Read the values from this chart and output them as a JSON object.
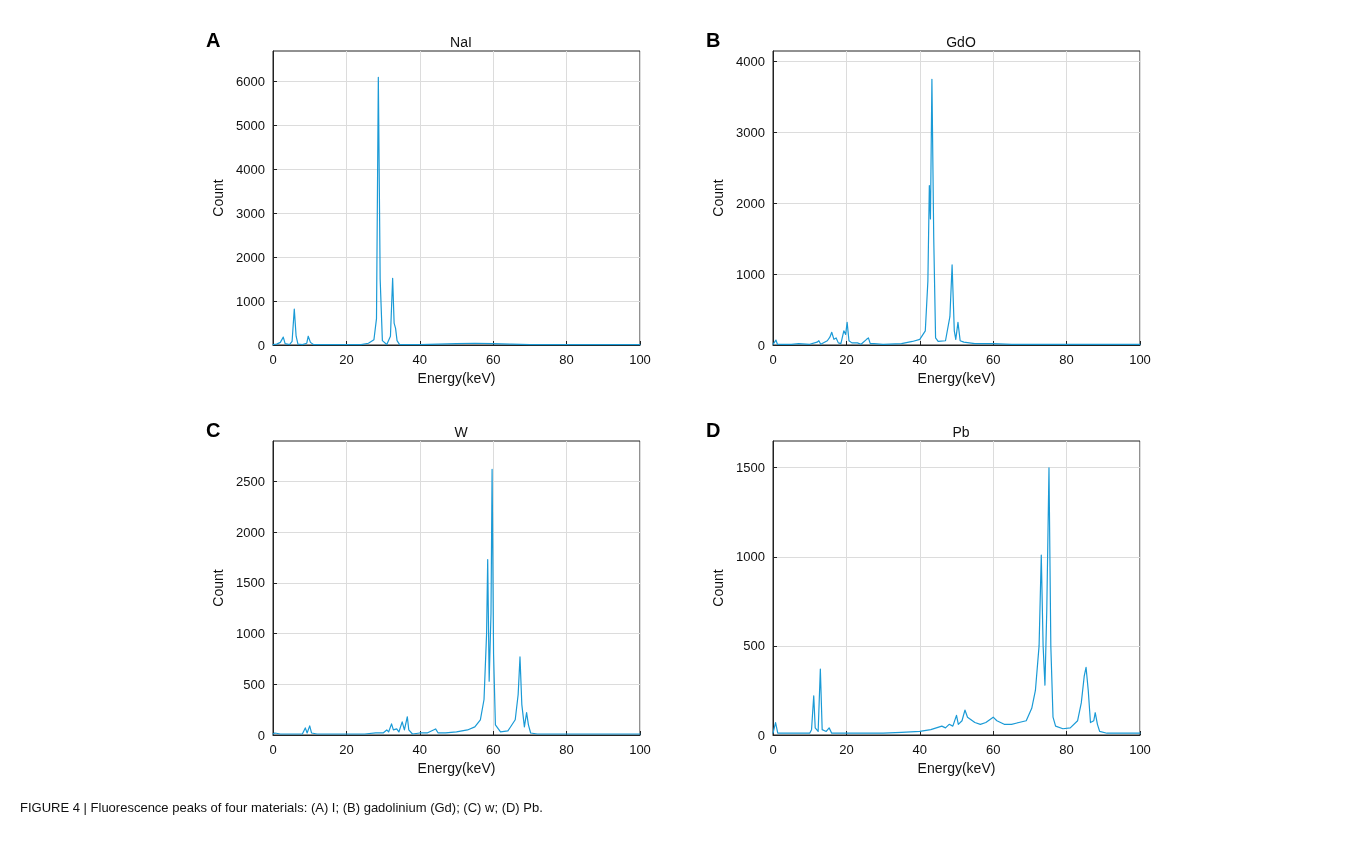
{
  "chart_data": [
    {
      "type": "line",
      "title": "NaI",
      "xlabel": "Energy(keV)",
      "ylabel": "Count",
      "annotations": [
        "A"
      ],
      "xlim": [
        0,
        100
      ],
      "xticks": [
        0,
        20,
        40,
        60,
        80,
        100
      ],
      "ylim": [
        0,
        6700
      ],
      "yticks": [
        0,
        1000,
        2000,
        3000,
        4000,
        5000,
        6000
      ],
      "grid": true,
      "marker": "none",
      "line_style": "solid",
      "x": [
        0,
        1,
        2,
        2.8,
        3.3,
        4.5,
        5.2,
        5.8,
        6.3,
        6.8,
        8,
        9.2,
        9.6,
        10.2,
        11,
        15,
        20,
        24,
        26,
        27.5,
        28.2,
        28.7,
        29.2,
        29.8,
        31,
        32,
        32.6,
        33,
        33.4,
        33.8,
        34.5,
        40,
        45,
        50,
        55,
        60,
        65,
        70,
        80,
        90,
        100
      ],
      "series": [
        {
          "color": "#1a9ad6",
          "values": [
            10,
            20,
            60,
            180,
            30,
            10,
            80,
            820,
            200,
            20,
            10,
            40,
            200,
            60,
            10,
            10,
            10,
            10,
            40,
            120,
            600,
            6100,
            1500,
            100,
            10,
            200,
            1520,
            500,
            380,
            100,
            10,
            10,
            20,
            30,
            40,
            30,
            20,
            10,
            10,
            10,
            10
          ]
        }
      ]
    },
    {
      "type": "line",
      "title": "GdO",
      "xlabel": "Energy(keV)",
      "ylabel": "Count",
      "annotations": [
        "B"
      ],
      "xlim": [
        0,
        100
      ],
      "xticks": [
        0,
        20,
        40,
        60,
        80,
        100
      ],
      "ylim": [
        0,
        4150
      ],
      "yticks": [
        0,
        1000,
        2000,
        3000,
        4000
      ],
      "grid": true,
      "marker": "none",
      "line_style": "solid",
      "x": [
        0,
        0.8,
        1.2,
        5,
        7,
        10,
        12,
        12.5,
        13,
        14.8,
        15.5,
        16,
        16.6,
        17.2,
        17.8,
        18.5,
        19.3,
        19.8,
        20.2,
        20.7,
        21.5,
        23,
        24,
        25.5,
        26,
        26.5,
        27.5,
        30,
        35,
        38,
        40,
        41.5,
        42.2,
        42.6,
        42.9,
        43.3,
        43.8,
        44.3,
        45,
        47,
        48.2,
        48.8,
        49.4,
        49.8,
        50.4,
        51,
        52,
        55,
        60,
        65,
        70,
        80,
        100
      ],
      "series": [
        {
          "color": "#1a9ad6",
          "values": [
            10,
            70,
            10,
            10,
            20,
            10,
            40,
            60,
            10,
            60,
            110,
            180,
            80,
            100,
            30,
            20,
            200,
            150,
            320,
            60,
            30,
            30,
            10,
            80,
            100,
            20,
            20,
            10,
            20,
            50,
            80,
            200,
            900,
            2250,
            1780,
            3750,
            1500,
            100,
            50,
            60,
            400,
            1130,
            200,
            80,
            320,
            60,
            40,
            20,
            20,
            10,
            10,
            10,
            10
          ]
        }
      ]
    },
    {
      "type": "line",
      "title": "W",
      "xlabel": "Energy(keV)",
      "ylabel": "Count",
      "annotations": [
        "C"
      ],
      "xlim": [
        0,
        100
      ],
      "xticks": [
        0,
        20,
        40,
        60,
        80,
        100
      ],
      "ylim": [
        0,
        2900
      ],
      "yticks": [
        0,
        500,
        1000,
        1500,
        2000,
        2500
      ],
      "grid": true,
      "marker": "none",
      "line_style": "solid",
      "x": [
        0,
        0.5,
        2,
        8,
        8.8,
        9.3,
        10,
        10.5,
        12,
        20,
        25,
        28,
        30,
        31,
        31.5,
        32.3,
        32.8,
        33.7,
        34.3,
        35.2,
        35.8,
        36.6,
        37,
        38,
        40,
        42,
        44.3,
        45,
        47,
        50,
        53,
        55,
        56.5,
        57.5,
        58.2,
        58.5,
        58.9,
        59.4,
        59.7,
        60.1,
        60.6,
        62,
        64,
        66,
        66.8,
        67.3,
        67.8,
        68.5,
        69.1,
        69.6,
        70.2,
        72,
        80,
        90,
        100
      ],
      "series": [
        {
          "color": "#1a9ad6",
          "values": [
            10,
            20,
            10,
            10,
            70,
            20,
            90,
            20,
            10,
            10,
            10,
            20,
            20,
            50,
            30,
            110,
            50,
            60,
            30,
            130,
            50,
            180,
            50,
            10,
            20,
            20,
            60,
            20,
            20,
            30,
            50,
            80,
            150,
            350,
            1000,
            1730,
            530,
            1200,
            2620,
            800,
            100,
            30,
            40,
            150,
            400,
            770,
            300,
            80,
            220,
            100,
            20,
            10,
            10,
            10,
            10
          ]
        }
      ]
    },
    {
      "type": "line",
      "title": "Pb",
      "xlabel": "Energy(keV)",
      "ylabel": "Count",
      "annotations": [
        "D",
        "FIGURE 4 | Fluorescence peaks of four materials: (A) I; (B) gadolinium (Gd); (C) w; (D) Pb."
      ],
      "xlim": [
        0,
        100
      ],
      "xticks": [
        0,
        20,
        40,
        60,
        80,
        100
      ],
      "ylim": [
        0,
        1650
      ],
      "yticks": [
        0,
        500,
        1000,
        1500
      ],
      "grid": true,
      "marker": "none",
      "line_style": "solid",
      "x": [
        0,
        0.7,
        1.3,
        5,
        10,
        10.5,
        11.1,
        11.5,
        12.3,
        12.9,
        13.4,
        14.5,
        15.3,
        16,
        20,
        25,
        30,
        35,
        40,
        43,
        46,
        47,
        48,
        49,
        50,
        50.5,
        51.5,
        52.3,
        53,
        55,
        56.5,
        58,
        60,
        61,
        63,
        65,
        67,
        69,
        70.5,
        71.5,
        72.5,
        73.1,
        73.6,
        74.1,
        74.6,
        75.2,
        75.7,
        76.3,
        77,
        79,
        81,
        83,
        84,
        84.8,
        85.3,
        85.9,
        86.5,
        87.4,
        87.8,
        88.4,
        89,
        91,
        95,
        100
      ],
      "series": [
        {
          "color": "#1a9ad6",
          "values": [
            10,
            70,
            10,
            10,
            10,
            30,
            220,
            40,
            20,
            370,
            30,
            20,
            40,
            10,
            10,
            10,
            10,
            15,
            20,
            30,
            50,
            40,
            60,
            50,
            110,
            60,
            80,
            140,
            100,
            70,
            60,
            70,
            100,
            80,
            60,
            60,
            70,
            80,
            150,
            250,
            500,
            1010,
            500,
            280,
            700,
            1500,
            500,
            100,
            50,
            35,
            40,
            80,
            180,
            330,
            380,
            250,
            70,
            80,
            125,
            60,
            20,
            10,
            10,
            10
          ]
        }
      ]
    }
  ]
}
